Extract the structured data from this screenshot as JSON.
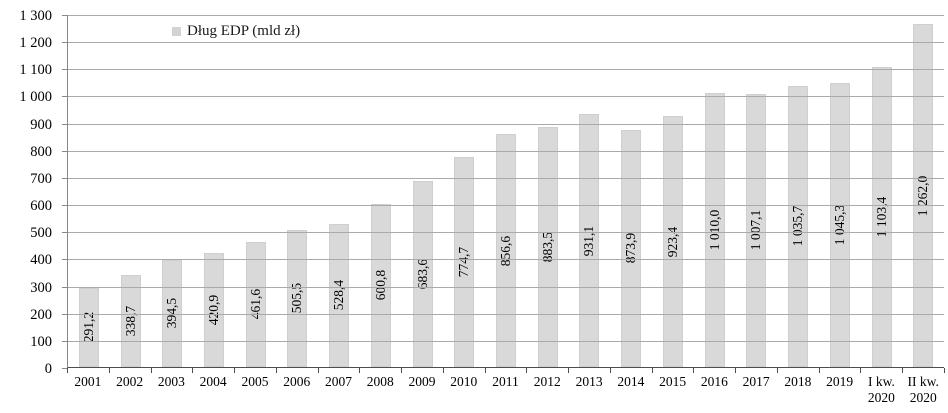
{
  "legend": {
    "label": "Dług EDP (mld zł)",
    "swatch_icon": "square-swatch-icon",
    "swatch_color": "#d3d3d3"
  },
  "colors": {
    "bar_fill": "#d9d9d9",
    "bar_border": "#cfcfcf",
    "gridline": "#aaaaaa",
    "y_axis_line": "#898989",
    "x_axis_line": "#4d4d4d",
    "text": "#000000"
  },
  "chart_data": {
    "type": "bar",
    "title": "",
    "xlabel": "",
    "ylabel": "",
    "legend": [
      "Dług EDP (mld zł)"
    ],
    "legend_position": "top-left-inside",
    "grid": true,
    "ylim": [
      0,
      1300
    ],
    "ytick_step": 100,
    "ytick_labels": [
      "0",
      "100",
      "200",
      "300",
      "400",
      "500",
      "600",
      "700",
      "800",
      "900",
      "1 000",
      "1 100",
      "1 200",
      "1 300"
    ],
    "categories": [
      "2001",
      "2002",
      "2003",
      "2004",
      "2005",
      "2006",
      "2007",
      "2008",
      "2009",
      "2010",
      "2011",
      "2012",
      "2013",
      "2014",
      "2015",
      "2016",
      "2017",
      "2018",
      "2019",
      "I kw.\n2020",
      "II kw.\n2020"
    ],
    "values": [
      291.2,
      338.7,
      394.5,
      420.9,
      461.6,
      505.5,
      528.4,
      600.8,
      683.6,
      774.7,
      856.6,
      883.5,
      931.1,
      873.9,
      923.4,
      1010.0,
      1007.1,
      1035.7,
      1045.3,
      1103.4,
      1262.0
    ],
    "value_labels": [
      "291,2",
      "338,7",
      "394,5",
      "420,9",
      "461,6",
      "505,5",
      "528,4",
      "600,8",
      "683,6",
      "774,7",
      "856,6",
      "883,5",
      "931,1",
      "873,9",
      "923,4",
      "1 010,0",
      "1 007,1",
      "1 035,7",
      "1 045,3",
      "1 103,4",
      "1 262,0"
    ]
  }
}
